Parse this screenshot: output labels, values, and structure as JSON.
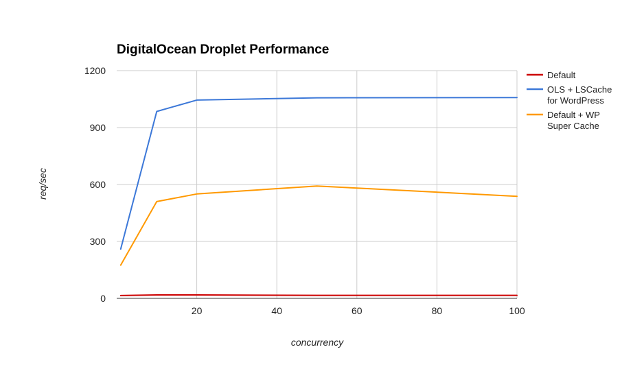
{
  "chart_data": {
    "type": "line",
    "title": "DigitalOcean Droplet Performance",
    "xlabel": "concurrency",
    "ylabel": "req/sec",
    "xlim": [
      0,
      100
    ],
    "ylim": [
      0,
      1200
    ],
    "xticks": [
      20,
      40,
      60,
      80,
      100
    ],
    "yticks": [
      0,
      300,
      600,
      900,
      1200
    ],
    "grid": true,
    "legend_position": "right",
    "series": [
      {
        "name": "Default",
        "color": "#cc0000",
        "legend_lines": [
          "Default"
        ],
        "points": [
          [
            1,
            15
          ],
          [
            10,
            18
          ],
          [
            20,
            18
          ],
          [
            50,
            16
          ],
          [
            100,
            16
          ]
        ]
      },
      {
        "name": "OLS + LSCache for WordPress",
        "color": "#3c78d8",
        "legend_lines": [
          "OLS + LSCache",
          "for WordPress"
        ],
        "points": [
          [
            1,
            260
          ],
          [
            10,
            985
          ],
          [
            20,
            1045
          ],
          [
            50,
            1057
          ],
          [
            100,
            1058
          ]
        ]
      },
      {
        "name": "Default + WP Super Cache",
        "color": "#ff9900",
        "legend_lines": [
          "Default + WP",
          "Super Cache"
        ],
        "points": [
          [
            1,
            175
          ],
          [
            10,
            510
          ],
          [
            20,
            550
          ],
          [
            50,
            592
          ],
          [
            100,
            538
          ]
        ]
      }
    ]
  }
}
